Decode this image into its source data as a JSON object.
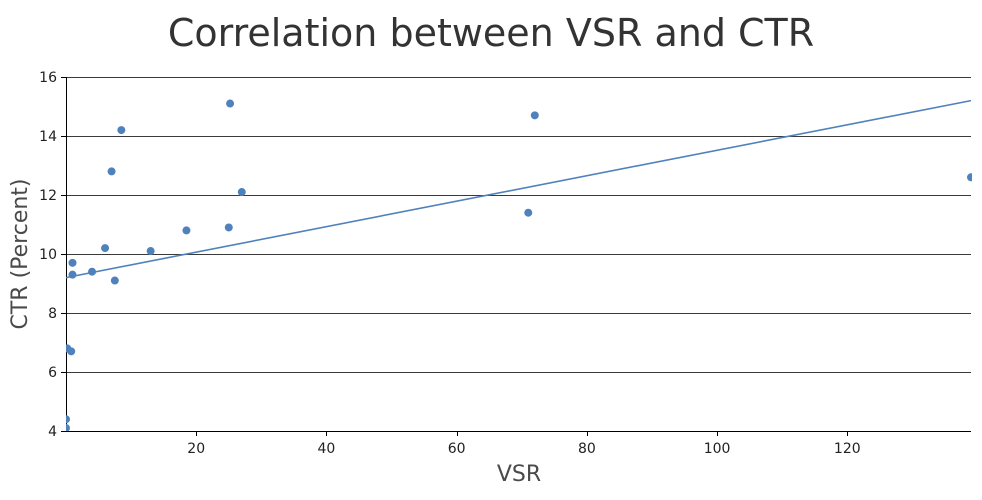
{
  "chart_data": {
    "type": "scatter",
    "title": "Correlation between VSR and CTR",
    "xlabel": "VSR",
    "ylabel": "CTR (Percent)",
    "xlim": [
      0,
      139
    ],
    "ylim": [
      4,
      16
    ],
    "x_ticks": [
      20,
      40,
      60,
      80,
      100,
      120
    ],
    "y_ticks": [
      4,
      6,
      8,
      10,
      12,
      14,
      16
    ],
    "grid": true,
    "legend": "none",
    "series": [
      {
        "color": "#4f81bd",
        "points": [
          {
            "x": 0,
            "y": 4.1
          },
          {
            "x": 0,
            "y": 4.4
          },
          {
            "x": 0.2,
            "y": 6.8
          },
          {
            "x": 0.8,
            "y": 6.7
          },
          {
            "x": 1,
            "y": 9.3
          },
          {
            "x": 1,
            "y": 9.7
          },
          {
            "x": 4,
            "y": 9.4
          },
          {
            "x": 6,
            "y": 10.2
          },
          {
            "x": 7,
            "y": 12.8
          },
          {
            "x": 7.5,
            "y": 9.1
          },
          {
            "x": 8.5,
            "y": 14.2
          },
          {
            "x": 13,
            "y": 10.1
          },
          {
            "x": 18.5,
            "y": 10.8
          },
          {
            "x": 25,
            "y": 10.9
          },
          {
            "x": 25.2,
            "y": 15.1
          },
          {
            "x": 27,
            "y": 12.1
          },
          {
            "x": 71,
            "y": 11.4
          },
          {
            "x": 72,
            "y": 14.7
          },
          {
            "x": 139,
            "y": 12.6
          }
        ]
      }
    ],
    "trendline": {
      "type": "linear",
      "color": "#4f81bd",
      "from": {
        "x": 0,
        "y": 9.2
      },
      "to": {
        "x": 139,
        "y": 15.2
      }
    }
  }
}
